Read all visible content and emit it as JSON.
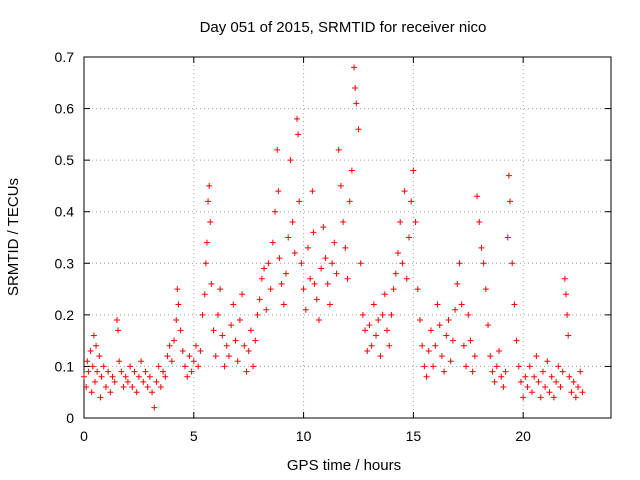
{
  "chart_data": {
    "type": "scatter",
    "title": "Day 051 of 2015, SRMTID for receiver nico",
    "xlabel": "GPS time / hours",
    "ylabel": "SRMTID / TECUs",
    "xlim": [
      0,
      24
    ],
    "ylim": [
      0,
      0.7
    ],
    "xticks": [
      "0",
      "5",
      "10",
      "15",
      "20"
    ],
    "xtick_values": [
      0,
      5,
      10,
      15,
      20
    ],
    "yticks": [
      "0",
      "0.1",
      "0.2",
      "0.3",
      "0.4",
      "0.5",
      "0.6",
      "0.7"
    ],
    "ytick_values": [
      0,
      0.1,
      0.2,
      0.3,
      0.4,
      0.5,
      0.6,
      0.7
    ],
    "grid": true,
    "marker": "+",
    "series": [
      {
        "name": "SRMTID",
        "color": "#ff0000",
        "points": [
          [
            0.0,
            0.08
          ],
          [
            0.1,
            0.06
          ],
          [
            0.15,
            0.11
          ],
          [
            0.2,
            0.09
          ],
          [
            0.3,
            0.13
          ],
          [
            0.35,
            0.05
          ],
          [
            0.4,
            0.1
          ],
          [
            0.45,
            0.16
          ],
          [
            0.5,
            0.07
          ],
          [
            0.55,
            0.14
          ],
          [
            0.6,
            0.09
          ],
          [
            0.7,
            0.12
          ],
          [
            0.75,
            0.04
          ],
          [
            0.8,
            0.08
          ],
          [
            0.9,
            0.1
          ],
          [
            1.0,
            0.06
          ],
          [
            1.1,
            0.09
          ],
          [
            1.2,
            0.05
          ],
          [
            1.3,
            0.08
          ],
          [
            1.4,
            0.07
          ],
          [
            1.5,
            0.19
          ],
          [
            1.55,
            0.17
          ],
          [
            1.6,
            0.11
          ],
          [
            1.7,
            0.09
          ],
          [
            1.8,
            0.06
          ],
          [
            1.9,
            0.08
          ],
          [
            2.0,
            0.07
          ],
          [
            2.1,
            0.1
          ],
          [
            2.2,
            0.06
          ],
          [
            2.3,
            0.09
          ],
          [
            2.4,
            0.05
          ],
          [
            2.5,
            0.08
          ],
          [
            2.6,
            0.11
          ],
          [
            2.7,
            0.07
          ],
          [
            2.8,
            0.09
          ],
          [
            2.9,
            0.06
          ],
          [
            3.0,
            0.08
          ],
          [
            3.1,
            0.05
          ],
          [
            3.2,
            0.02
          ],
          [
            3.3,
            0.07
          ],
          [
            3.4,
            0.1
          ],
          [
            3.5,
            0.06
          ],
          [
            3.6,
            0.09
          ],
          [
            3.7,
            0.08
          ],
          [
            3.8,
            0.12
          ],
          [
            3.9,
            0.14
          ],
          [
            4.0,
            0.11
          ],
          [
            4.1,
            0.15
          ],
          [
            4.2,
            0.19
          ],
          [
            4.25,
            0.25
          ],
          [
            4.3,
            0.22
          ],
          [
            4.4,
            0.17
          ],
          [
            4.5,
            0.13
          ],
          [
            4.6,
            0.1
          ],
          [
            4.7,
            0.08
          ],
          [
            4.8,
            0.12
          ],
          [
            4.9,
            0.09
          ],
          [
            5.0,
            0.11
          ],
          [
            5.1,
            0.14
          ],
          [
            5.2,
            0.1
          ],
          [
            5.3,
            0.13
          ],
          [
            5.4,
            0.2
          ],
          [
            5.5,
            0.24
          ],
          [
            5.55,
            0.3
          ],
          [
            5.6,
            0.34
          ],
          [
            5.65,
            0.42
          ],
          [
            5.7,
            0.45
          ],
          [
            5.75,
            0.38
          ],
          [
            5.8,
            0.26
          ],
          [
            5.9,
            0.17
          ],
          [
            6.0,
            0.12
          ],
          [
            6.1,
            0.2
          ],
          [
            6.2,
            0.25
          ],
          [
            6.3,
            0.16
          ],
          [
            6.4,
            0.1
          ],
          [
            6.5,
            0.14
          ],
          [
            6.6,
            0.12
          ],
          [
            6.7,
            0.18
          ],
          [
            6.8,
            0.22
          ],
          [
            6.9,
            0.15
          ],
          [
            7.0,
            0.11
          ],
          [
            7.1,
            0.19
          ],
          [
            7.2,
            0.24
          ],
          [
            7.3,
            0.14
          ],
          [
            7.4,
            0.09
          ],
          [
            7.5,
            0.13
          ],
          [
            7.6,
            0.17
          ],
          [
            7.7,
            0.1
          ],
          [
            7.8,
            0.15
          ],
          [
            7.9,
            0.2
          ],
          [
            8.0,
            0.23
          ],
          [
            8.1,
            0.27
          ],
          [
            8.2,
            0.29
          ],
          [
            8.3,
            0.21
          ],
          [
            8.4,
            0.3
          ],
          [
            8.5,
            0.25
          ],
          [
            8.6,
            0.34
          ],
          [
            8.7,
            0.4
          ],
          [
            8.8,
            0.52
          ],
          [
            8.85,
            0.44
          ],
          [
            8.9,
            0.31
          ],
          [
            9.0,
            0.26
          ],
          [
            9.1,
            0.22
          ],
          [
            9.2,
            0.28
          ],
          [
            9.3,
            0.35
          ],
          [
            9.4,
            0.5
          ],
          [
            9.5,
            0.38
          ],
          [
            9.6,
            0.32
          ],
          [
            9.7,
            0.58
          ],
          [
            9.75,
            0.55
          ],
          [
            9.8,
            0.42
          ],
          [
            9.9,
            0.3
          ],
          [
            10.0,
            0.25
          ],
          [
            10.1,
            0.21
          ],
          [
            10.2,
            0.33
          ],
          [
            10.3,
            0.27
          ],
          [
            10.4,
            0.44
          ],
          [
            10.45,
            0.36
          ],
          [
            10.5,
            0.26
          ],
          [
            10.6,
            0.23
          ],
          [
            10.7,
            0.19
          ],
          [
            10.8,
            0.29
          ],
          [
            10.9,
            0.37
          ],
          [
            11.0,
            0.31
          ],
          [
            11.1,
            0.26
          ],
          [
            11.2,
            0.22
          ],
          [
            11.3,
            0.3
          ],
          [
            11.4,
            0.34
          ],
          [
            11.5,
            0.28
          ],
          [
            11.6,
            0.52
          ],
          [
            11.7,
            0.45
          ],
          [
            11.8,
            0.38
          ],
          [
            11.9,
            0.33
          ],
          [
            12.0,
            0.27
          ],
          [
            12.1,
            0.42
          ],
          [
            12.2,
            0.48
          ],
          [
            12.3,
            0.68
          ],
          [
            12.35,
            0.64
          ],
          [
            12.4,
            0.61
          ],
          [
            12.5,
            0.56
          ],
          [
            12.6,
            0.3
          ],
          [
            12.7,
            0.2
          ],
          [
            12.8,
            0.17
          ],
          [
            12.9,
            0.13
          ],
          [
            13.0,
            0.18
          ],
          [
            13.1,
            0.14
          ],
          [
            13.2,
            0.22
          ],
          [
            13.3,
            0.16
          ],
          [
            13.4,
            0.19
          ],
          [
            13.5,
            0.12
          ],
          [
            13.6,
            0.2
          ],
          [
            13.7,
            0.24
          ],
          [
            13.8,
            0.17
          ],
          [
            13.9,
            0.14
          ],
          [
            14.0,
            0.2
          ],
          [
            14.1,
            0.25
          ],
          [
            14.2,
            0.28
          ],
          [
            14.3,
            0.32
          ],
          [
            14.4,
            0.38
          ],
          [
            14.5,
            0.3
          ],
          [
            14.6,
            0.44
          ],
          [
            14.7,
            0.27
          ],
          [
            14.8,
            0.35
          ],
          [
            14.9,
            0.42
          ],
          [
            15.0,
            0.48
          ],
          [
            15.1,
            0.38
          ],
          [
            15.2,
            0.25
          ],
          [
            15.3,
            0.19
          ],
          [
            15.4,
            0.14
          ],
          [
            15.5,
            0.1
          ],
          [
            15.6,
            0.08
          ],
          [
            15.7,
            0.13
          ],
          [
            15.8,
            0.17
          ],
          [
            15.9,
            0.1
          ],
          [
            16.0,
            0.14
          ],
          [
            16.1,
            0.22
          ],
          [
            16.2,
            0.18
          ],
          [
            16.3,
            0.12
          ],
          [
            16.4,
            0.09
          ],
          [
            16.5,
            0.16
          ],
          [
            16.6,
            0.19
          ],
          [
            16.7,
            0.11
          ],
          [
            16.8,
            0.15
          ],
          [
            16.9,
            0.21
          ],
          [
            17.0,
            0.26
          ],
          [
            17.1,
            0.3
          ],
          [
            17.2,
            0.22
          ],
          [
            17.3,
            0.14
          ],
          [
            17.4,
            0.1
          ],
          [
            17.5,
            0.2
          ],
          [
            17.6,
            0.15
          ],
          [
            17.7,
            0.09
          ],
          [
            17.8,
            0.12
          ],
          [
            17.9,
            0.43
          ],
          [
            18.0,
            0.38
          ],
          [
            18.1,
            0.33
          ],
          [
            18.2,
            0.3
          ],
          [
            18.3,
            0.25
          ],
          [
            18.4,
            0.18
          ],
          [
            18.5,
            0.12
          ],
          [
            18.6,
            0.09
          ],
          [
            18.7,
            0.07
          ],
          [
            18.8,
            0.1
          ],
          [
            18.9,
            0.13
          ],
          [
            19.0,
            0.08
          ],
          [
            19.1,
            0.06
          ],
          [
            19.2,
            0.09
          ],
          [
            19.3,
            0.35
          ],
          [
            19.35,
            0.47
          ],
          [
            19.4,
            0.42
          ],
          [
            19.5,
            0.3
          ],
          [
            19.6,
            0.22
          ],
          [
            19.7,
            0.15
          ],
          [
            19.8,
            0.1
          ],
          [
            19.9,
            0.07
          ],
          [
            20.0,
            0.04
          ],
          [
            20.1,
            0.08
          ],
          [
            20.2,
            0.06
          ],
          [
            20.3,
            0.1
          ],
          [
            20.4,
            0.05
          ],
          [
            20.5,
            0.08
          ],
          [
            20.6,
            0.12
          ],
          [
            20.7,
            0.07
          ],
          [
            20.8,
            0.04
          ],
          [
            20.9,
            0.09
          ],
          [
            21.0,
            0.06
          ],
          [
            21.1,
            0.11
          ],
          [
            21.2,
            0.05
          ],
          [
            21.3,
            0.08
          ],
          [
            21.4,
            0.04
          ],
          [
            21.5,
            0.07
          ],
          [
            21.6,
            0.1
          ],
          [
            21.7,
            0.06
          ],
          [
            21.8,
            0.09
          ],
          [
            21.9,
            0.27
          ],
          [
            21.95,
            0.24
          ],
          [
            22.0,
            0.2
          ],
          [
            22.05,
            0.16
          ],
          [
            22.1,
            0.08
          ],
          [
            22.2,
            0.05
          ],
          [
            22.3,
            0.07
          ],
          [
            22.4,
            0.04
          ],
          [
            22.5,
            0.06
          ],
          [
            22.6,
            0.09
          ],
          [
            22.7,
            0.05
          ]
        ]
      }
    ]
  }
}
